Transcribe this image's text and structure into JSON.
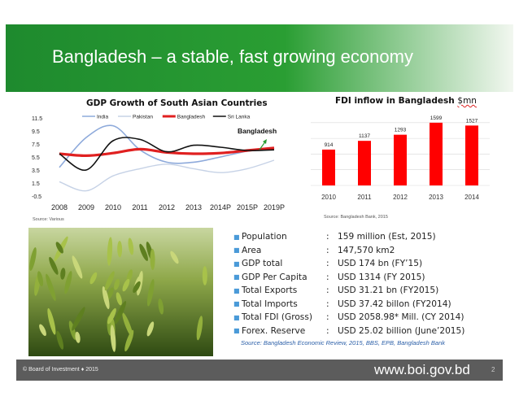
{
  "slide": {
    "title": "Bangladesh – a stable, fast growing economy",
    "source_left": "Source: Various",
    "source_fdi": "Source: Bangladesh Bank, 2015",
    "bottom_source": "Source: Bangladesh Economic Review, 2015, BBS, EPB, Bangladesh Bank",
    "footer_left": "© Board of Investment  ♦ 2015",
    "footer_url": "www.boi.gov.bd",
    "page_number": "2"
  },
  "chart_data": [
    {
      "type": "line",
      "title": "GDP Growth of South Asian Countries",
      "annotation": "Bangladesh",
      "categories": [
        "2008",
        "2009",
        "2010",
        "2011",
        "2012",
        "2013",
        "2014P",
        "2015P",
        "2019P"
      ],
      "y_ticks": [
        "11.5",
        "9.5",
        "7.5",
        "5.5",
        "3.5",
        "1.5",
        "-0.5"
      ],
      "ylim": [
        -0.5,
        11.5
      ],
      "legend_position": "top",
      "series": [
        {
          "name": "India",
          "color": "#8eaadb",
          "values": [
            3.9,
            8.5,
            10.3,
            6.6,
            4.7,
            4.7,
            5.5,
            6.4,
            6.9
          ]
        },
        {
          "name": "Pakistan",
          "color": "#c6d2e6",
          "values": [
            1.7,
            0.3,
            2.6,
            3.7,
            4.4,
            3.7,
            3.1,
            3.7,
            5.0
          ]
        },
        {
          "name": "Bangladesh",
          "color": "#e02020",
          "values": [
            6.0,
            5.7,
            6.1,
            6.7,
            6.2,
            6.0,
            6.1,
            6.5,
            6.9
          ]
        },
        {
          "name": "Sri Lanka",
          "color": "#111111",
          "values": [
            6.0,
            3.5,
            8.0,
            8.2,
            6.3,
            7.3,
            7.0,
            6.5,
            6.6
          ]
        }
      ]
    },
    {
      "type": "bar",
      "title": "FDI inflow in Bangladesh",
      "unit": "$mn",
      "categories": [
        "2010",
        "2011",
        "2012",
        "2013",
        "2014"
      ],
      "values": [
        914,
        1137,
        1293,
        1599,
        1527
      ],
      "value_labels": [
        "914",
        "1137",
        "1293",
        "1599",
        "1527"
      ],
      "ylim": [
        0,
        1700
      ],
      "bar_color": "#ff0000",
      "grid": true
    }
  ],
  "stats": [
    {
      "label": "Population",
      "value": "159 million (Est, 2015)"
    },
    {
      "label": "Area",
      "value": "147,570 km2"
    },
    {
      "label": "GDP total",
      "value": "USD 174 bn (FY’15)"
    },
    {
      "label": "GDP Per Capita",
      "value": "USD 1314  (FY 2015)"
    },
    {
      "label": "Total Exports",
      "value": "USD  31.21 bn (FY2015)"
    },
    {
      "label": "Total Imports",
      "value": "USD 37.42 billon (FY2014)"
    },
    {
      "label": "Total FDI (Gross)",
      "value": "USD  2058.98* Mill. (CY 2014)"
    },
    {
      "label": "Forex. Reserve",
      "value": "USD 25.02 billion (June’2015)"
    }
  ],
  "colors": {
    "title_bar": "#2a9e33",
    "footer": "#5c5c5c",
    "bullet": "#4a9ad8"
  }
}
